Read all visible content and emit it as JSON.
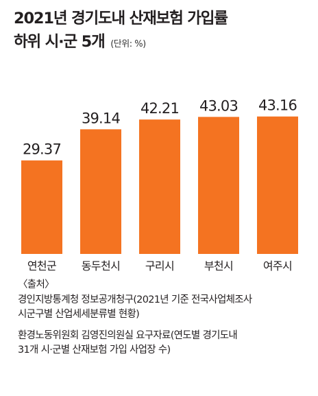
{
  "title": {
    "line1": "2021년 경기도내 산재보험 가입률",
    "line2": "하위 시·군 5개",
    "unit": "(단위: %)"
  },
  "chart_data": {
    "type": "bar",
    "title": "2021년 경기도내 산재보험 가입률 하위 시·군 5개",
    "unit": "(단위: %)",
    "categories": [
      "연천군",
      "동두천시",
      "구리시",
      "부천시",
      "여주시"
    ],
    "values": [
      29.37,
      39.14,
      42.21,
      43.03,
      43.16
    ],
    "value_labels": [
      "29.37",
      "39.14",
      "42.21",
      "43.03",
      "43.16"
    ],
    "bar_color": "#f47321",
    "ylim": [
      0,
      50
    ],
    "grid": false,
    "legend": "none"
  },
  "source": {
    "header": "〈출처〉",
    "lines": [
      "경인지방통계청 정보공개청구(2021년 기준 전국사업체조사",
      "시군구별 산업세세분류별 현황)",
      "환경노동위원회 김영진의원실 요구자료(연도별 경기도내",
      "31개 시·군별 산재보험 가입 사업장 수)"
    ]
  }
}
